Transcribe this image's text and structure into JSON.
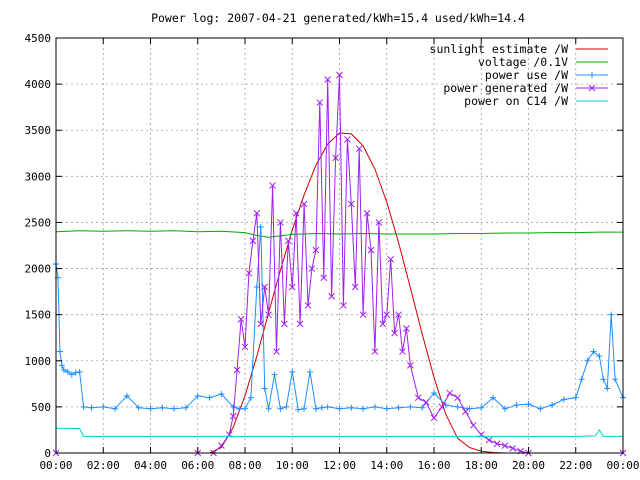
{
  "chart_data": {
    "type": "line",
    "title": "Power log: 2007-04-21 generated/kWh=15.4 used/kWh=14.4",
    "xlabel": "",
    "ylabel": "",
    "xlim_hours": [
      0,
      24
    ],
    "ylim": [
      0,
      4500
    ],
    "x_ticks": [
      "00:00",
      "02:00",
      "04:00",
      "06:00",
      "08:00",
      "10:00",
      "12:00",
      "14:00",
      "16:00",
      "18:00",
      "20:00",
      "22:00",
      "00:00"
    ],
    "y_ticks": [
      0,
      500,
      1000,
      1500,
      2000,
      2500,
      3000,
      3500,
      4000,
      4500
    ],
    "grid": true,
    "legend_position": "top-right",
    "series": [
      {
        "name": "sunlight estimate /W",
        "color": "#cc0000",
        "style": "line",
        "x": [
          "06:30",
          "07:00",
          "07:30",
          "08:00",
          "08:30",
          "09:00",
          "09:30",
          "10:00",
          "10:30",
          "11:00",
          "11:30",
          "12:00",
          "12:30",
          "13:00",
          "13:30",
          "14:00",
          "14:30",
          "15:00",
          "15:30",
          "16:00",
          "16:30",
          "17:00",
          "17:30",
          "18:00",
          "18:30",
          "19:00",
          "19:30"
        ],
        "values": [
          0,
          60,
          280,
          620,
          1050,
          1520,
          1980,
          2420,
          2800,
          3120,
          3350,
          3470,
          3460,
          3330,
          3080,
          2720,
          2280,
          1790,
          1290,
          820,
          420,
          160,
          60,
          20,
          5,
          0,
          0
        ]
      },
      {
        "name": "voltage /0.1V",
        "color": "#00aa00",
        "style": "line",
        "x": [
          "00:00",
          "01:00",
          "02:00",
          "03:00",
          "04:00",
          "05:00",
          "06:00",
          "07:00",
          "08:00",
          "08:30",
          "09:00",
          "10:00",
          "11:00",
          "12:00",
          "13:00",
          "14:00",
          "15:00",
          "16:00",
          "17:00",
          "18:00",
          "19:00",
          "20:00",
          "21:00",
          "22:00",
          "23:00",
          "24:00"
        ],
        "values": [
          2400,
          2410,
          2405,
          2410,
          2405,
          2410,
          2400,
          2405,
          2390,
          2360,
          2340,
          2370,
          2380,
          2375,
          2380,
          2375,
          2375,
          2375,
          2380,
          2380,
          2385,
          2385,
          2390,
          2390,
          2395,
          2395
        ]
      },
      {
        "name": "power use /W",
        "color": "#1f8fff",
        "style": "line-plus",
        "x": [
          "00:00",
          "00:05",
          "00:10",
          "00:15",
          "00:20",
          "00:30",
          "00:40",
          "00:50",
          "01:00",
          "01:10",
          "01:30",
          "02:00",
          "02:30",
          "03:00",
          "03:30",
          "04:00",
          "04:30",
          "05:00",
          "05:30",
          "06:00",
          "06:30",
          "07:00",
          "07:30",
          "07:45",
          "08:00",
          "08:15",
          "08:30",
          "08:40",
          "08:50",
          "09:00",
          "09:15",
          "09:30",
          "09:45",
          "10:00",
          "10:15",
          "10:30",
          "10:45",
          "11:00",
          "11:15",
          "11:30",
          "12:00",
          "12:30",
          "13:00",
          "13:30",
          "14:00",
          "14:30",
          "15:00",
          "15:30",
          "16:00",
          "16:30",
          "17:00",
          "17:30",
          "18:00",
          "18:30",
          "19:00",
          "19:30",
          "20:00",
          "20:30",
          "21:00",
          "21:30",
          "22:00",
          "22:15",
          "22:30",
          "22:45",
          "23:00",
          "23:10",
          "23:20",
          "23:30",
          "23:40",
          "24:00"
        ],
        "values": [
          2050,
          1900,
          1100,
          950,
          900,
          880,
          850,
          870,
          880,
          500,
          490,
          500,
          480,
          620,
          490,
          480,
          490,
          480,
          490,
          620,
          600,
          640,
          500,
          480,
          480,
          600,
          1800,
          2450,
          700,
          480,
          850,
          480,
          500,
          880,
          470,
          480,
          880,
          480,
          490,
          500,
          480,
          490,
          480,
          500,
          480,
          490,
          500,
          490,
          650,
          520,
          500,
          480,
          490,
          600,
          480,
          520,
          530,
          480,
          520,
          580,
          600,
          800,
          1000,
          1100,
          1050,
          800,
          700,
          1500,
          800,
          600
        ]
      },
      {
        "name": "power generated /W",
        "color": "#a020f0",
        "style": "line-x",
        "x": [
          "00:00",
          "06:00",
          "06:40",
          "07:00",
          "07:20",
          "07:30",
          "07:40",
          "07:50",
          "08:00",
          "08:10",
          "08:20",
          "08:30",
          "08:40",
          "08:50",
          "09:00",
          "09:10",
          "09:20",
          "09:30",
          "09:40",
          "09:50",
          "10:00",
          "10:10",
          "10:20",
          "10:30",
          "10:40",
          "10:50",
          "11:00",
          "11:10",
          "11:20",
          "11:30",
          "11:40",
          "11:50",
          "12:00",
          "12:10",
          "12:20",
          "12:30",
          "12:40",
          "12:50",
          "13:00",
          "13:10",
          "13:20",
          "13:30",
          "13:40",
          "13:50",
          "14:00",
          "14:10",
          "14:20",
          "14:30",
          "14:40",
          "14:50",
          "15:00",
          "15:20",
          "15:40",
          "16:00",
          "16:20",
          "16:40",
          "17:00",
          "17:20",
          "17:40",
          "18:00",
          "18:20",
          "18:40",
          "19:00",
          "19:20",
          "19:40",
          "20:00",
          "24:00"
        ],
        "values": [
          0,
          0,
          0,
          80,
          200,
          400,
          900,
          1450,
          1150,
          1950,
          2300,
          2600,
          1400,
          1800,
          1500,
          2900,
          1100,
          2500,
          1400,
          2300,
          1800,
          2600,
          1400,
          2700,
          1600,
          2000,
          2200,
          3800,
          1900,
          4050,
          1700,
          3200,
          4100,
          1600,
          3400,
          2700,
          1800,
          3300,
          1500,
          2600,
          2200,
          1100,
          2500,
          1400,
          1500,
          2100,
          1300,
          1500,
          1100,
          1350,
          950,
          600,
          550,
          380,
          500,
          650,
          600,
          450,
          300,
          200,
          140,
          100,
          80,
          50,
          20,
          0,
          0
        ]
      },
      {
        "name": "power on C14 /W",
        "color": "#00cccc",
        "style": "line",
        "x": [
          "00:00",
          "01:00",
          "01:10",
          "02:00",
          "04:00",
          "06:00",
          "08:00",
          "10:00",
          "12:00",
          "14:00",
          "16:00",
          "18:00",
          "20:00",
          "22:00",
          "22:50",
          "23:00",
          "23:10",
          "24:00"
        ],
        "values": [
          270,
          265,
          180,
          180,
          180,
          180,
          180,
          180,
          180,
          180,
          180,
          180,
          180,
          180,
          185,
          250,
          180,
          180
        ]
      }
    ]
  }
}
